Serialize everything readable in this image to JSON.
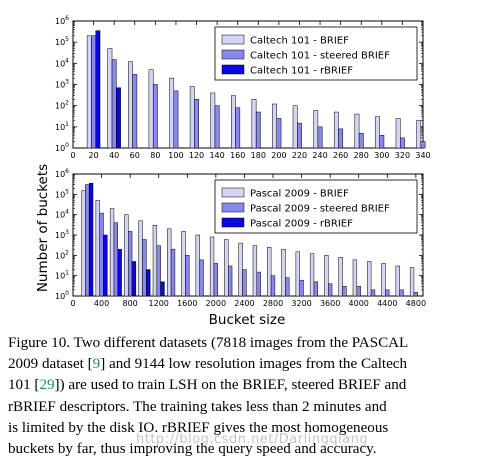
{
  "chart_data": [
    {
      "type": "bar",
      "yscale": "log",
      "ylim": [
        1,
        1000000
      ],
      "ytick_labels": [
        "10^0",
        "10^1",
        "10^2",
        "10^3",
        "10^4",
        "10^5",
        "10^6"
      ],
      "xtick_labels": [
        "0",
        "20",
        "40",
        "60",
        "80",
        "100",
        "120",
        "140",
        "160",
        "180",
        "200",
        "220",
        "240",
        "260",
        "280",
        "300",
        "320",
        "340"
      ],
      "legend_position": "top-right",
      "series": [
        {
          "name": "Caltech 101 - BRIEF",
          "color": "#d4d4f4",
          "x": [
            20,
            40,
            60,
            80,
            100,
            120,
            140,
            160,
            180,
            200,
            220,
            240,
            260,
            280,
            300,
            320,
            340
          ],
          "values": [
            200000,
            50000,
            12000,
            5000,
            2000,
            800,
            400,
            300,
            200,
            120,
            100,
            60,
            50,
            40,
            30,
            25,
            20
          ]
        },
        {
          "name": "Caltech 101 - steered BRIEF",
          "color": "#8888ee",
          "x": [
            20,
            40,
            60,
            80,
            100,
            120,
            140,
            160,
            180,
            200,
            220,
            240,
            260,
            280,
            300,
            320,
            340
          ],
          "values": [
            200000,
            15000,
            3000,
            1000,
            500,
            200,
            100,
            80,
            50,
            25,
            15,
            10,
            8,
            5,
            4,
            3,
            2
          ]
        },
        {
          "name": "Caltech 101 - rBRIEF",
          "color": "#0808e0",
          "x": [
            20,
            40
          ],
          "values": [
            350000,
            700
          ]
        }
      ]
    },
    {
      "type": "bar",
      "yscale": "log",
      "ylim": [
        1,
        1000000
      ],
      "ytick_labels": [
        "10^0",
        "10^1",
        "10^2",
        "10^3",
        "10^4",
        "10^5",
        "10^6"
      ],
      "xtick_labels": [
        "0",
        "400",
        "800",
        "1200",
        "1600",
        "2000",
        "2400",
        "2800",
        "3200",
        "3600",
        "4000",
        "4400",
        "4800"
      ],
      "legend_position": "top-right",
      "series": [
        {
          "name": "Pascal 2009 - BRIEF",
          "color": "#d4d4f4",
          "x": [
            200,
            400,
            600,
            800,
            1000,
            1200,
            1400,
            1600,
            1800,
            2000,
            2200,
            2400,
            2600,
            2800,
            3000,
            3200,
            3400,
            3600,
            3800,
            4000,
            4200,
            4400,
            4600,
            4800
          ],
          "values": [
            150000,
            50000,
            20000,
            10000,
            5000,
            3000,
            2000,
            1500,
            1000,
            800,
            600,
            400,
            300,
            250,
            200,
            150,
            120,
            100,
            80,
            60,
            50,
            40,
            30,
            25
          ]
        },
        {
          "name": "Pascal 2009 - steered BRIEF",
          "color": "#8888ee",
          "x": [
            200,
            400,
            600,
            800,
            1000,
            1200,
            1400,
            1600,
            1800,
            2000,
            2200,
            2400,
            2600,
            2800,
            3000,
            3200,
            3400,
            3600,
            3800,
            4000,
            4200,
            4400,
            4600,
            4800
          ],
          "values": [
            300000,
            12000,
            4000,
            1500,
            600,
            300,
            200,
            100,
            60,
            40,
            30,
            20,
            15,
            10,
            8,
            6,
            5,
            4,
            3,
            3,
            2,
            2,
            2,
            1.5
          ]
        },
        {
          "name": "Pascal 2009 - rBRIEF",
          "color": "#0808e0",
          "x": [
            200,
            400,
            600,
            800,
            1000,
            1200
          ],
          "values": [
            350000,
            1000,
            200,
            50,
            20,
            5
          ]
        }
      ]
    }
  ],
  "axes": {
    "ylabel": "Number of buckets",
    "xlabel": "Bucket size"
  },
  "caption": {
    "line1": "Figure 10. Two different datasets (7818 images from the PASCAL",
    "line2a": "2009 dataset [",
    "ref1": "9",
    "line2b": "] and 9144 low resolution images from the Caltech",
    "line3a": "101 [",
    "ref2": "29",
    "line3b": "]) are used to train LSH on the BRIEF, steered BRIEF and",
    "line4": "rBRIEF descriptors.  The training takes less than 2 minutes and",
    "line5": "is limited by the disk IO. rBRIEF gives the most homogeneous",
    "line6": "buckets by far, thus improving the query speed and accuracy."
  },
  "watermark": "http://blog.csdn.net/Darlingqiang"
}
